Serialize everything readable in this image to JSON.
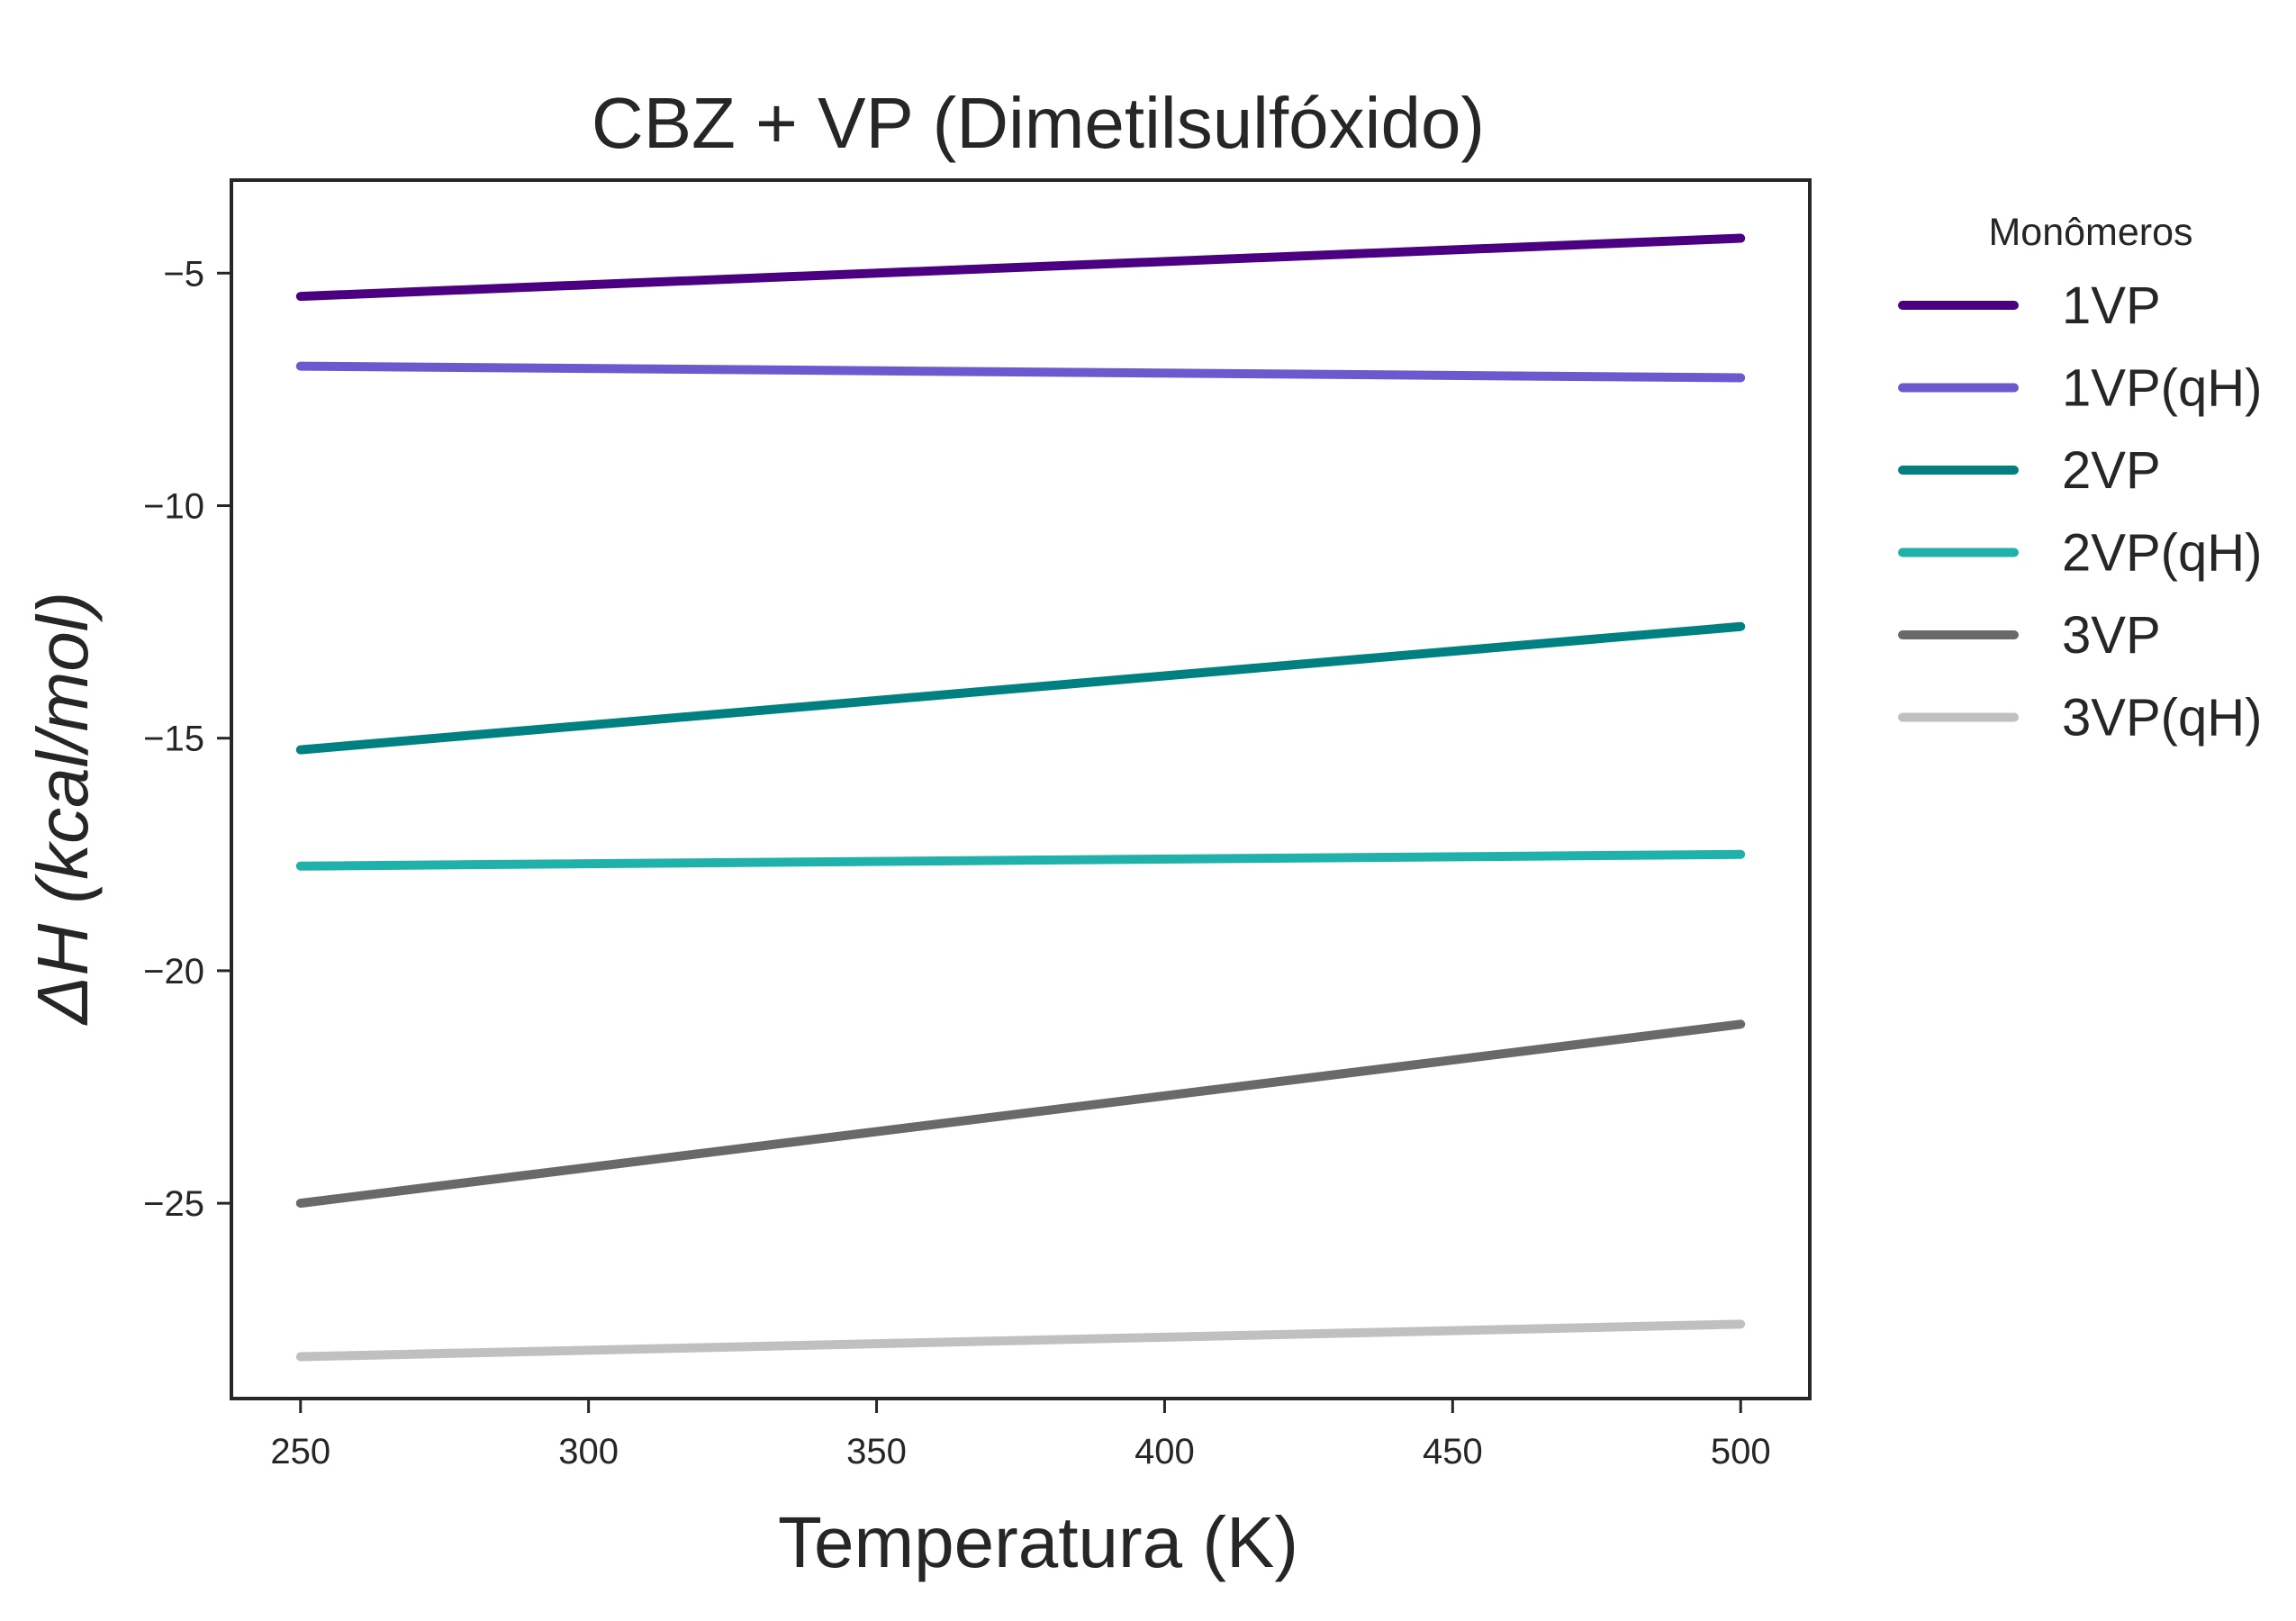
{
  "chart_data": {
    "type": "line",
    "title": "CBZ + VP (Dimetilsulfóxido)",
    "xlabel": "Temperatura (K)",
    "ylabel": "ΔH (kcal/mol)",
    "xlim": [
      238,
      512
    ],
    "ylim": [
      -29.2,
      -3.0
    ],
    "xticks": [
      250,
      300,
      350,
      400,
      450,
      500
    ],
    "xtick_labels": [
      "250",
      "300",
      "350",
      "400",
      "450",
      "500"
    ],
    "yticks": [
      -5,
      -10,
      -15,
      -20,
      -25
    ],
    "ytick_labels": [
      "−5",
      "−10",
      "−15",
      "−20",
      "−25"
    ],
    "grid": false,
    "legend": {
      "title": "Monômeros",
      "placement": "outside-right"
    },
    "x": [
      250,
      500
    ],
    "series": [
      {
        "name": "1VP",
        "color": "#4b0082",
        "values": [
          -5.5,
          -4.25
        ]
      },
      {
        "name": "1VP(qH)",
        "color": "#6a5acd",
        "values": [
          -7.0,
          -7.25
        ]
      },
      {
        "name": "2VP",
        "color": "#008080",
        "values": [
          -15.25,
          -12.6
        ]
      },
      {
        "name": "2VP(qH)",
        "color": "#20b2aa",
        "values": [
          -17.75,
          -17.5
        ]
      },
      {
        "name": "3VP",
        "color": "#696969",
        "values": [
          -25.0,
          -21.15
        ]
      },
      {
        "name": "3VP(qH)",
        "color": "#c0c0c0",
        "values": [
          -28.3,
          -27.6
        ]
      }
    ]
  }
}
